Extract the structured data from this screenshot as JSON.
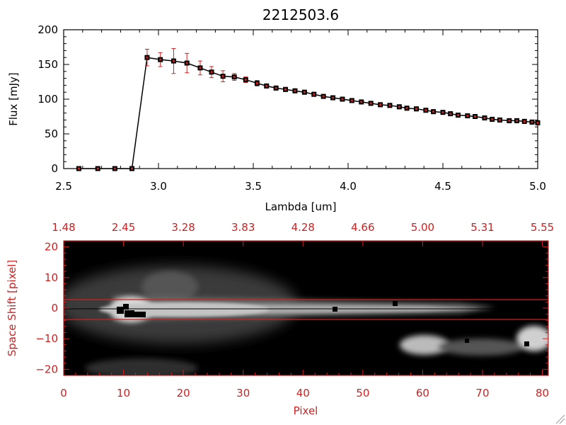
{
  "title": "2212503.6",
  "colors": {
    "axis": "#000000",
    "accent": "#cc2222",
    "line": "#000000"
  },
  "chart_data": [
    {
      "type": "line",
      "title": "2212503.6",
      "xlabel": "Lambda [um]",
      "ylabel": "Flux [mJy]",
      "xlim": [
        2.5,
        5.0
      ],
      "ylim": [
        0,
        200
      ],
      "xticks": [
        "2.5",
        "3.0",
        "3.5",
        "4.0",
        "4.5",
        "5.0"
      ],
      "yticks": [
        "0",
        "50",
        "100",
        "150",
        "200"
      ],
      "grid": false,
      "series": [
        {
          "x": [
            2.58,
            2.68,
            2.77,
            2.86,
            2.94,
            3.01,
            3.08,
            3.15,
            3.22,
            3.28,
            3.34,
            3.4,
            3.46,
            3.52,
            3.57,
            3.62,
            3.67,
            3.72,
            3.77,
            3.82,
            3.87,
            3.92,
            3.97,
            4.02,
            4.07,
            4.12,
            4.17,
            4.22,
            4.27,
            4.31,
            4.36,
            4.41,
            4.45,
            4.5,
            4.54,
            4.58,
            4.63,
            4.67,
            4.72,
            4.76,
            4.8,
            4.85,
            4.89,
            4.93,
            4.97,
            5.0
          ],
          "y": [
            0,
            0,
            0,
            0,
            160,
            157,
            155,
            152,
            145,
            139,
            133,
            132,
            128,
            123,
            119,
            116,
            114,
            112,
            110,
            107,
            104,
            102,
            100,
            98,
            96,
            94,
            92,
            91,
            89,
            87,
            86,
            84,
            82,
            81,
            79,
            77,
            76,
            75,
            73,
            71,
            70,
            69,
            69,
            68,
            67,
            66
          ],
          "yerr": [
            0,
            0,
            0,
            0,
            12,
            10,
            18,
            14,
            10,
            8,
            8,
            5,
            4,
            4,
            3,
            3,
            3,
            3,
            3,
            3,
            3,
            3,
            3,
            3,
            3,
            3,
            3,
            3,
            3,
            3,
            3,
            3,
            3,
            3,
            3,
            3,
            3,
            3,
            3,
            3,
            3,
            3,
            3,
            3,
            3,
            3
          ]
        }
      ]
    },
    {
      "type": "heatmap",
      "xlabel": "Pixel",
      "ylabel": "Space Shift [pixel]",
      "xlim": [
        0,
        81
      ],
      "ylim": [
        -22,
        22
      ],
      "xticks": [
        "0",
        "10",
        "20",
        "30",
        "40",
        "50",
        "60",
        "70",
        "80"
      ],
      "yticks": [
        "-20",
        "-10",
        "0",
        "10",
        "20"
      ],
      "top_ticks": [
        "1.48",
        "2.45",
        "3.28",
        "3.83",
        "4.28",
        "4.66",
        "5.00",
        "5.31",
        "5.55"
      ],
      "extraction_band": [
        -3,
        3
      ],
      "colormap": "grayscale"
    }
  ]
}
